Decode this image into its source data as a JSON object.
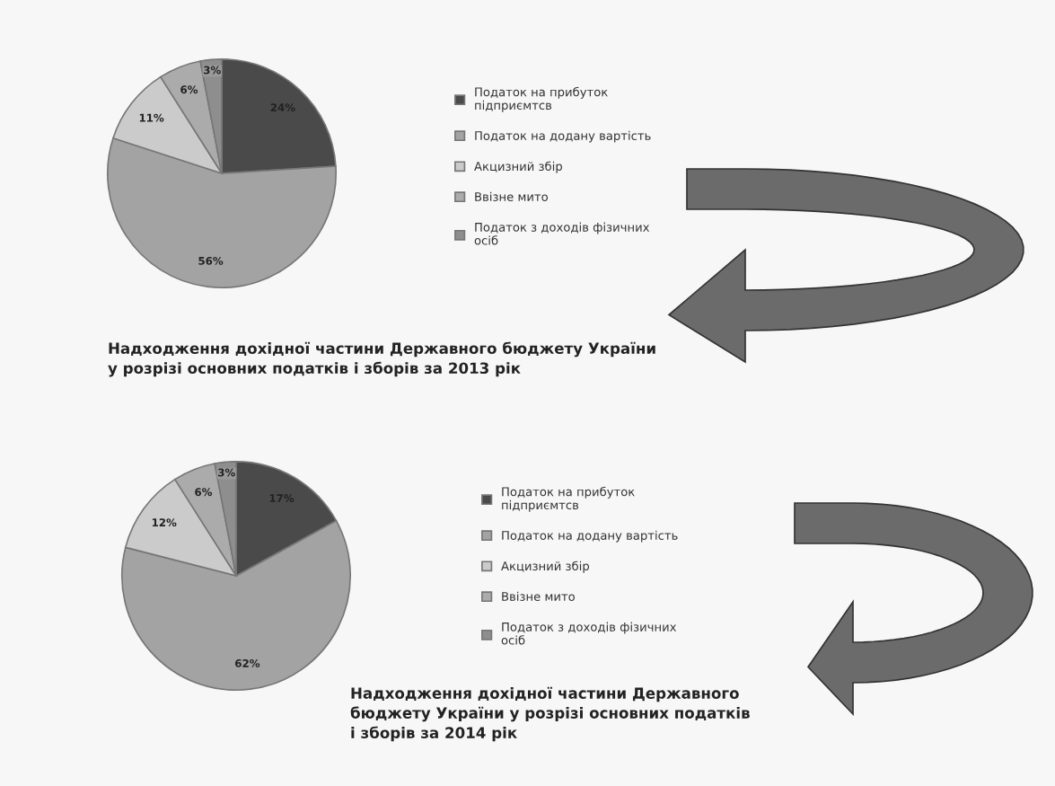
{
  "chart_data": [
    {
      "type": "pie",
      "title": "Надходження дохідної частини Державного бюджету України\nу розрізі основних податків і зборів за 2013 рік",
      "categories": [
        "Податок на прибуток\nпідприємтсв",
        "Податок на додану вартість",
        "Акцизний збір",
        "Ввізне мито",
        "Податок з доходів фізичних\nосіб"
      ],
      "values": [
        24,
        56,
        11,
        6,
        3
      ],
      "value_labels": [
        "24%",
        "56%",
        "11%",
        "6%",
        "3%"
      ],
      "colors": [
        "#4a4a4a",
        "#a3a3a3",
        "#cbcbcb",
        "#ababab",
        "#8e8e8e"
      ],
      "legend": "right"
    },
    {
      "type": "pie",
      "title": "Надходження дохідної частини Державного\nбюджету України у розрізі основних податків\nі зборів за 2014 рік",
      "categories": [
        "Податок на прибуток\nпідприємтсв",
        "Податок на додану вартість",
        "Акцизний збір",
        "Ввізне мито",
        "Податок з доходів фізичних\nосіб"
      ],
      "values": [
        17,
        62,
        12,
        6,
        3
      ],
      "value_labels": [
        "17%",
        "62%",
        "12%",
        "6%",
        "3%"
      ],
      "colors": [
        "#4a4a4a",
        "#a3a3a3",
        "#cbcbcb",
        "#ababab",
        "#8e8e8e"
      ],
      "legend": "right"
    }
  ]
}
